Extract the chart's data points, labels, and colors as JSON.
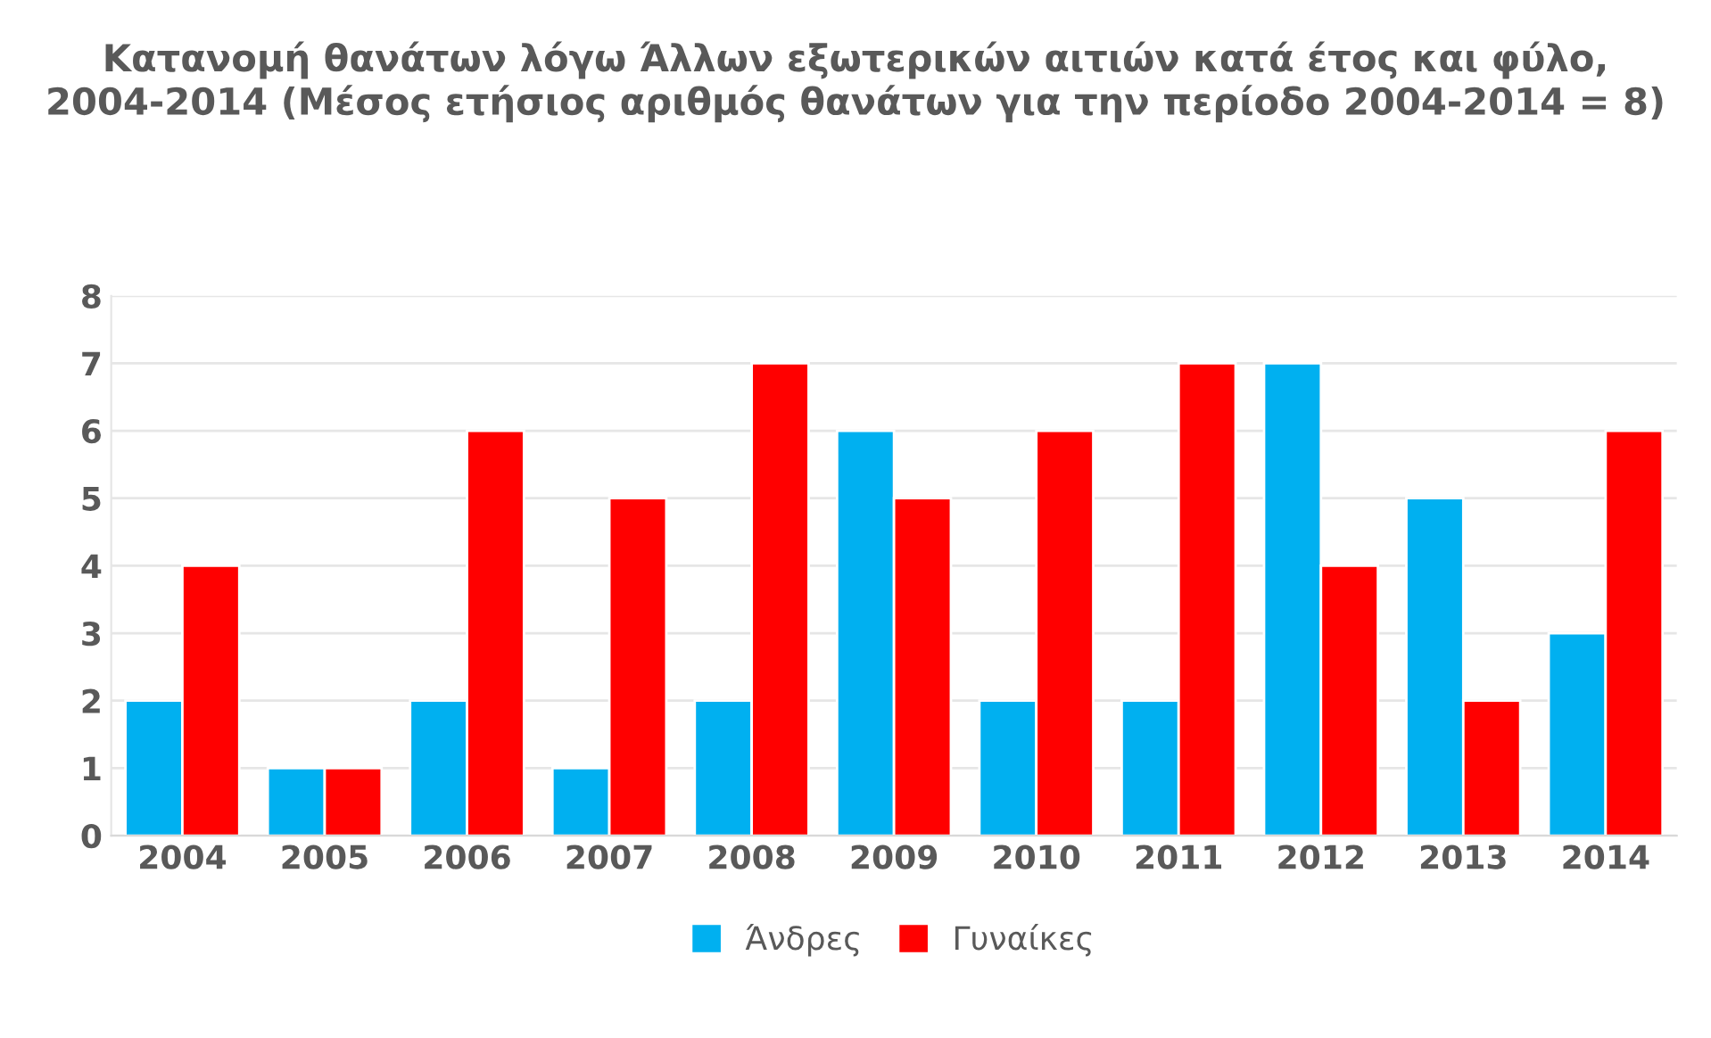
{
  "chart_data": {
    "type": "bar",
    "title": "Κατανομή θανάτων λόγω Άλλων εξωτερικών αιτιών κατά έτος και φύλο, 2004-2014 (Μέσος ετήσιος αριθμός θανάτων για την περίοδο 2004-2014 = 8)",
    "categories": [
      "2004",
      "2005",
      "2006",
      "2007",
      "2008",
      "2009",
      "2010",
      "2011",
      "2012",
      "2013",
      "2014"
    ],
    "series": [
      {
        "name": "Άνδρες",
        "color": "#00b0f0",
        "values": [
          2,
          1,
          2,
          1,
          2,
          6,
          2,
          2,
          7,
          5,
          3
        ]
      },
      {
        "name": "Γυναίκες",
        "color": "#ff0000",
        "values": [
          4,
          1,
          6,
          5,
          7,
          5,
          6,
          7,
          4,
          2,
          6
        ]
      }
    ],
    "ylim": [
      0,
      8
    ],
    "yticks": [
      0,
      1,
      2,
      3,
      4,
      5,
      6,
      7,
      8
    ],
    "grid": "y",
    "legend": "bottom"
  }
}
